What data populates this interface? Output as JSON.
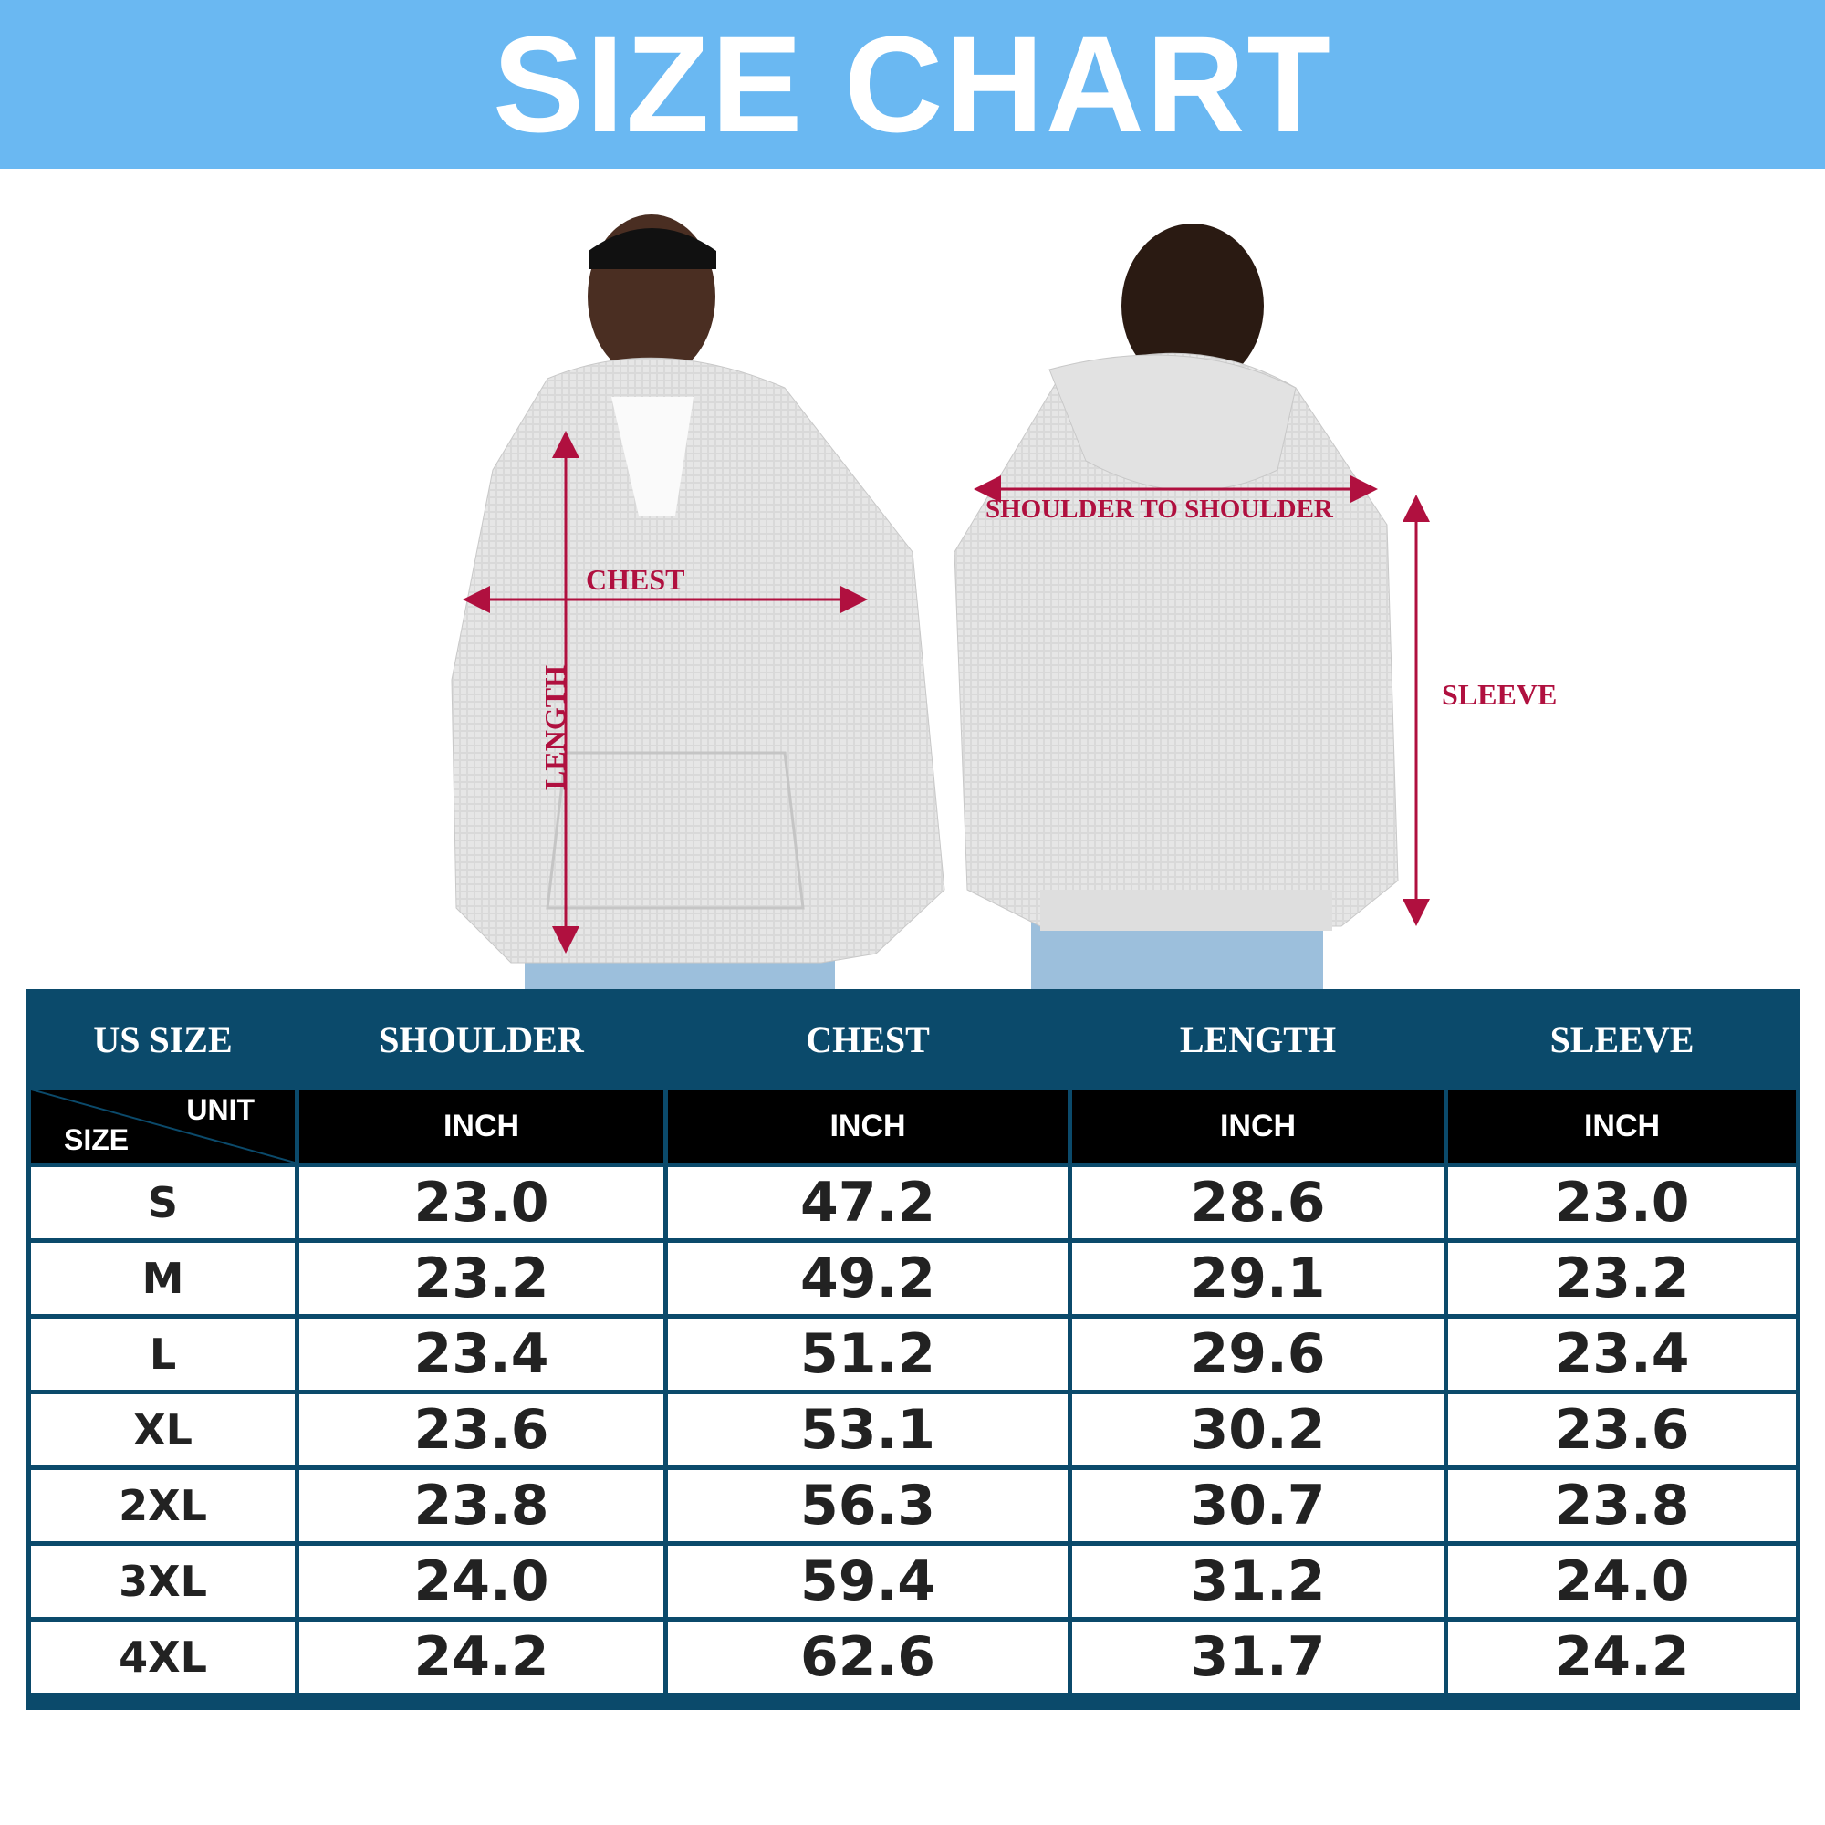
{
  "title": "SIZE CHART",
  "measurements": {
    "chest": "CHEST",
    "length": "LENGTH",
    "shoulder": "SHOULDER TO SHOULDER",
    "sleeve": "SLEEVE"
  },
  "colors": {
    "banner": "#6ab8f2",
    "table": "#0b4a6b",
    "label": "#b0103f"
  },
  "table": {
    "headers": [
      "US SIZE",
      "SHOULDER",
      "CHEST",
      "LENGTH",
      "SLEEVE"
    ],
    "corner": {
      "top": "UNIT",
      "bottom": "SIZE"
    },
    "units": [
      "INCH",
      "INCH",
      "INCH",
      "INCH"
    ],
    "rows": [
      [
        "S",
        "23.0",
        "47.2",
        "28.6",
        "23.0"
      ],
      [
        "M",
        "23.2",
        "49.2",
        "29.1",
        "23.2"
      ],
      [
        "L",
        "23.4",
        "51.2",
        "29.6",
        "23.4"
      ],
      [
        "XL",
        "23.6",
        "53.1",
        "30.2",
        "23.6"
      ],
      [
        "2XL",
        "23.8",
        "56.3",
        "30.7",
        "23.8"
      ],
      [
        "3XL",
        "24.0",
        "59.4",
        "31.2",
        "24.0"
      ],
      [
        "4XL",
        "24.2",
        "62.6",
        "31.7",
        "24.2"
      ]
    ]
  }
}
